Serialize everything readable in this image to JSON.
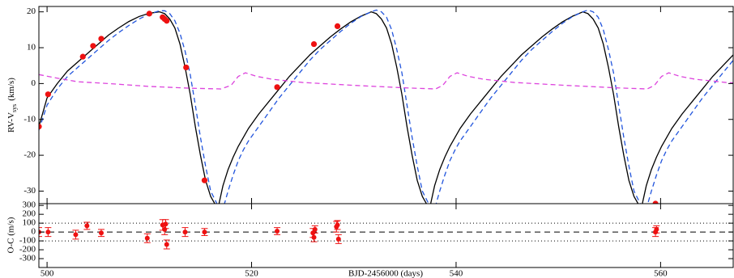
{
  "chart_data": [
    {
      "type": "line",
      "ylabel": "RV-V",
      "ylabel_sub": "sys",
      "ylabel_unit": "(km/s)",
      "xlim": [
        499.2,
        567.1
      ],
      "ylim": [
        -33.5,
        21.5
      ],
      "xticks": [
        500,
        520,
        540,
        560
      ],
      "yticks": [
        20,
        10,
        0,
        -10,
        -20,
        -30
      ],
      "x": [
        499.2,
        500,
        501,
        502,
        503,
        504,
        505,
        506,
        507,
        508,
        509,
        510,
        511,
        511.5,
        512,
        512.5,
        513,
        513.5,
        514,
        514.5,
        515,
        515.5,
        516,
        516.7,
        517.2,
        517.7,
        518.2,
        518.7,
        519.2,
        519.7,
        520.2,
        520.7,
        521.7,
        522.7,
        523.7,
        524.7,
        525.7,
        526.7,
        527.7,
        528.7,
        529.7,
        530.7,
        531.7,
        532.2,
        532.7,
        533.2,
        533.7,
        534.2,
        534.7,
        535.2,
        535.7,
        536.2,
        536.7,
        537.4,
        537.9,
        538.4,
        538.9,
        539.4,
        539.9,
        540.4,
        540.9,
        541.4,
        542.4,
        543.4,
        544.4,
        545.4,
        546.4,
        547.4,
        548.4,
        549.4,
        550.4,
        551.4,
        552.4,
        552.9,
        553.4,
        553.9,
        554.4,
        554.9,
        555.4,
        555.9,
        556.4,
        556.9,
        557.4,
        558.1,
        558.6,
        559.1,
        559.6,
        560.1,
        560.6,
        561.1,
        561.6,
        562.1,
        563.1,
        564.1,
        565.1,
        566.1,
        567.1
      ],
      "series": [
        {
          "color": "#000000",
          "dash": "none",
          "values": [
            -12,
            -4,
            0,
            3.5,
            6,
            8.5,
            11,
            13.5,
            15.5,
            17.3,
            18.7,
            19.6,
            20,
            19.5,
            18,
            15.5,
            11,
            4.5,
            -3,
            -12,
            -20,
            -27,
            -31.5,
            -35,
            -28.5,
            -24,
            -20.5,
            -17.5,
            -15,
            -12.5,
            -10.5,
            -8.5,
            -5,
            -1.5,
            2,
            5,
            8,
            10.5,
            13,
            15.2,
            17.2,
            18.8,
            20,
            19.5,
            18,
            15.5,
            11,
            4.5,
            -3,
            -12,
            -20,
            -27,
            -31.5,
            -35,
            -28.5,
            -24,
            -20.5,
            -17.5,
            -15,
            -12.5,
            -10.5,
            -8.5,
            -5,
            -1.5,
            2,
            5,
            8,
            10.5,
            13,
            15.2,
            17.2,
            18.8,
            20,
            19.5,
            18,
            15.5,
            11,
            4.5,
            -3,
            -12,
            -20,
            -27,
            -31.5,
            -35,
            -28.5,
            -24,
            -20.5,
            -17.5,
            -15,
            -12.5,
            -10.5,
            -8.5,
            -5,
            -1.5,
            2,
            5,
            8
          ]
        },
        {
          "color": "#2255dd",
          "dash": "6,4",
          "values": [
            -13,
            -6,
            -1.5,
            2,
            4.5,
            7,
            9.5,
            12,
            14.2,
            16.2,
            18,
            19.4,
            20.3,
            20.3,
            19.5,
            17.5,
            14,
            9,
            2.5,
            -6,
            -15,
            -23,
            -30,
            -34,
            -35,
            -30,
            -25.5,
            -21.5,
            -18.5,
            -16,
            -14,
            -12,
            -8,
            -4,
            -0.5,
            3,
            6.5,
            9.5,
            12,
            14.5,
            16.8,
            18.7,
            20,
            20.5,
            20,
            18.5,
            15,
            9.5,
            3,
            -6,
            -15,
            -23,
            -30,
            -34,
            -35,
            -30,
            -25.5,
            -21.5,
            -18.5,
            -16,
            -14,
            -12,
            -8,
            -4,
            -0.5,
            3,
            6.5,
            9.5,
            12,
            14.5,
            16.8,
            18.7,
            20,
            20.5,
            20,
            18.5,
            15,
            9.5,
            3,
            -6,
            -15,
            -23,
            -30,
            -34,
            -35,
            -30,
            -25.5,
            -21.5,
            -18.5,
            -16,
            -14,
            -12,
            -8,
            -4,
            -0.5,
            3,
            6.5
          ]
        },
        {
          "color": "#dd44dd",
          "dash": "6,4",
          "x": [
            499.2,
            501,
            503,
            506,
            510,
            514,
            517,
            518,
            518.7,
            519.4,
            520.5,
            522,
            525,
            530,
            535,
            538,
            538.7,
            539.4,
            540.1,
            541.2,
            542.7,
            545.7,
            550.7,
            555.7,
            558.7,
            559.4,
            560.1,
            560.8,
            561.9,
            563.4,
            566.4,
            567.1
          ],
          "values": [
            2.5,
            1.5,
            0.5,
            0,
            -0.8,
            -1.3,
            -1.5,
            -0.5,
            2,
            3,
            2,
            1.2,
            0.3,
            -0.5,
            -1.2,
            -1.5,
            -0.5,
            2,
            3,
            2,
            1.2,
            0.3,
            -0.5,
            -1.2,
            -1.5,
            -0.5,
            2,
            3,
            2,
            1.2,
            0.3,
            0.2
          ]
        }
      ],
      "points": {
        "color": "#ee1111",
        "x": [
          499.2,
          500.1,
          503.5,
          504.5,
          505.3,
          510.0,
          511.3,
          511.5,
          511.7,
          513.6,
          515.4,
          522.5,
          526.1,
          528.4,
          559.5
        ],
        "values": [
          -12,
          -3,
          7.5,
          10.5,
          12.5,
          19.5,
          18.5,
          18,
          17.5,
          4.5,
          -27,
          -1,
          11,
          16,
          -33.5
        ]
      }
    },
    {
      "type": "scatter",
      "ylabel": "O-C (m/s)",
      "xlabel": "BJD-2456000 (days)",
      "xlim": [
        499.2,
        567.1
      ],
      "ylim": [
        -400,
        320
      ],
      "xticks": [
        500,
        520,
        540,
        560
      ],
      "yticks": [
        300,
        200,
        100,
        0,
        -100,
        -200,
        -300
      ],
      "hlines": [
        {
          "value": 100,
          "dash": "1,3"
        },
        {
          "value": 0,
          "dash": "7,5"
        },
        {
          "value": -100,
          "dash": "1,3"
        }
      ],
      "color": "#ee1111",
      "x": [
        499.2,
        500.1,
        502.8,
        503.9,
        505.3,
        509.8,
        511.3,
        511.5,
        511.6,
        511.7,
        513.5,
        515.4,
        522.5,
        526.0,
        526.1,
        526.2,
        528.3,
        528.4,
        528.5,
        559.5,
        559.6
      ],
      "values": [
        0,
        0,
        -30,
        70,
        -10,
        -70,
        80,
        30,
        90,
        -140,
        0,
        0,
        10,
        -10,
        -60,
        30,
        60,
        80,
        -80,
        0,
        30
      ],
      "errors": [
        50,
        50,
        50,
        40,
        40,
        50,
        60,
        60,
        50,
        50,
        50,
        40,
        40,
        50,
        50,
        40,
        60,
        50,
        50,
        50,
        40
      ]
    }
  ]
}
